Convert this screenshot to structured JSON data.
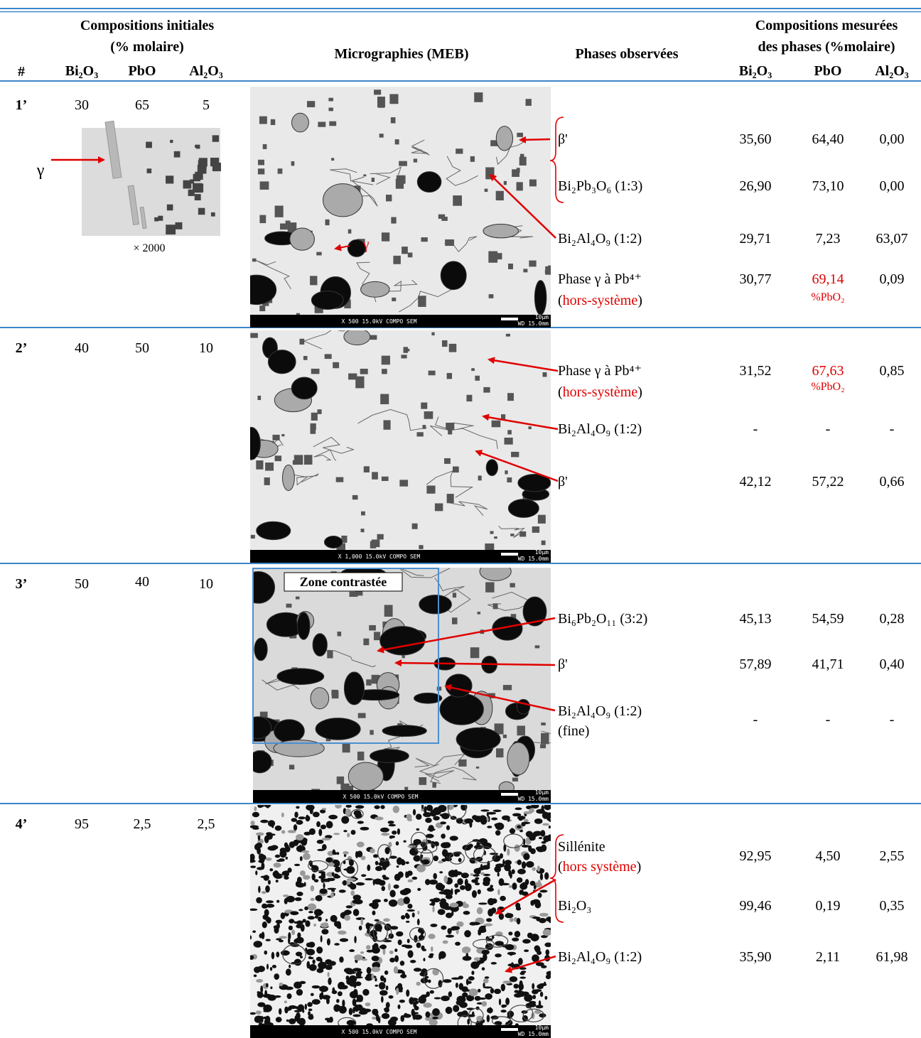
{
  "header": {
    "initial_title": "Compositions initiales",
    "initial_unit": "(% molaire)",
    "index": "#",
    "initial_columns": [
      "Bi₂O₃",
      "PbO",
      "Al₂O₃"
    ],
    "micrographs": "Micrographies (MEB)",
    "phases": "Phases observées",
    "measured_title": "Compositions mesurées",
    "measured_unit": "des phases (%molaire)",
    "measured_columns": [
      "Bi₂O₃",
      "PbO",
      "Al₂O₃"
    ]
  },
  "rows": [
    {
      "id": "1’",
      "initial": [
        "30",
        "65",
        "5"
      ],
      "inset": {
        "label": "γ",
        "magnification": "× 2000"
      },
      "image": {
        "label": "γ",
        "sem_bar": "X 500     15.0kV COMPO   SEM",
        "working_distance": "WD 15.0mm",
        "scale": "10µm"
      },
      "phases": [
        {
          "name": "β'",
          "values": [
            "35,60",
            "64,40",
            "0,00"
          ]
        },
        {
          "name": "Bi₂Pb₃O₆ (1:3)",
          "values": [
            "26,90",
            "73,10",
            "0,00"
          ]
        },
        {
          "name": "Bi₂Al₄O₉ (1:2)",
          "values": [
            "29,71",
            "7,23",
            "63,07"
          ]
        },
        {
          "name": "Phase γ à Pb⁴⁺",
          "note": [
            {
              "text": "(",
              "color": "#000000"
            },
            {
              "text": "hors-système",
              "color": "#e00000"
            },
            {
              "text": ")",
              "color": "#000000"
            }
          ],
          "values": [
            "30,77",
            "69,14",
            "0,09"
          ],
          "value_note": "%PbO₂",
          "highlight_color": "#e00000"
        }
      ]
    },
    {
      "id": "2’",
      "initial": [
        "40",
        "50",
        "10"
      ],
      "image": {
        "sem_bar": "X 1,000   15.0kV COMPO   SEM",
        "working_distance": "WD 15.0mm",
        "scale": "10µm"
      },
      "phases": [
        {
          "name": "Phase γ à Pb⁴⁺",
          "note": [
            {
              "text": "(",
              "color": "#000000"
            },
            {
              "text": "hors-système",
              "color": "#e00000"
            },
            {
              "text": ")",
              "color": "#000000"
            }
          ],
          "values": [
            "31,52",
            "67,63",
            "0,85"
          ],
          "value_note": "%PbO₂",
          "highlight_color": "#e00000"
        },
        {
          "name": "Bi₂Al₄O₉ (1:2)",
          "values": [
            "-",
            "-",
            "-"
          ]
        },
        {
          "name": "β'",
          "values": [
            "42,12",
            "57,22",
            "0,66"
          ]
        }
      ]
    },
    {
      "id": "3’",
      "initial": [
        "50",
        "40",
        "10"
      ],
      "image": {
        "label": "Zone contrastée",
        "sem_bar": "X 500     15.0kV COMPO   SEM",
        "working_distance": "WD 15.0mm",
        "scale": "10µm"
      },
      "phases": [
        {
          "name": "Bi₆Pb₂O₁₁ (3:2)",
          "values": [
            "45,13",
            "54,59",
            "0,28"
          ]
        },
        {
          "name": "β'",
          "values": [
            "57,89",
            "41,71",
            "0,40"
          ]
        },
        {
          "name": "Bi₂Al₄O₉ (1:2)",
          "note": [
            {
              "text": "(fine)",
              "color": "#000000"
            }
          ],
          "values": [
            "-",
            "-",
            "-"
          ]
        }
      ]
    },
    {
      "id": "4’",
      "initial": [
        "95",
        "2,5",
        "2,5"
      ],
      "image": {
        "sem_bar": "X 500     15.0kV COMPO   SEM",
        "working_distance": "WD 15.0mm",
        "scale": "10µm"
      },
      "phases": [
        {
          "name": "Sillénite",
          "note": [
            {
              "text": "(",
              "color": "#000000"
            },
            {
              "text": "hors système",
              "color": "#e00000"
            },
            {
              "text": ")",
              "color": "#000000"
            }
          ],
          "values": [
            "92,95",
            "4,50",
            "2,55"
          ]
        },
        {
          "name": "Bi₂O₃",
          "values": [
            "99,46",
            "0,19",
            "0,35"
          ]
        },
        {
          "name": "Bi₂Al₄O₉ (1:2)",
          "values": [
            "35,90",
            "2,11",
            "61,98"
          ]
        }
      ]
    }
  ]
}
